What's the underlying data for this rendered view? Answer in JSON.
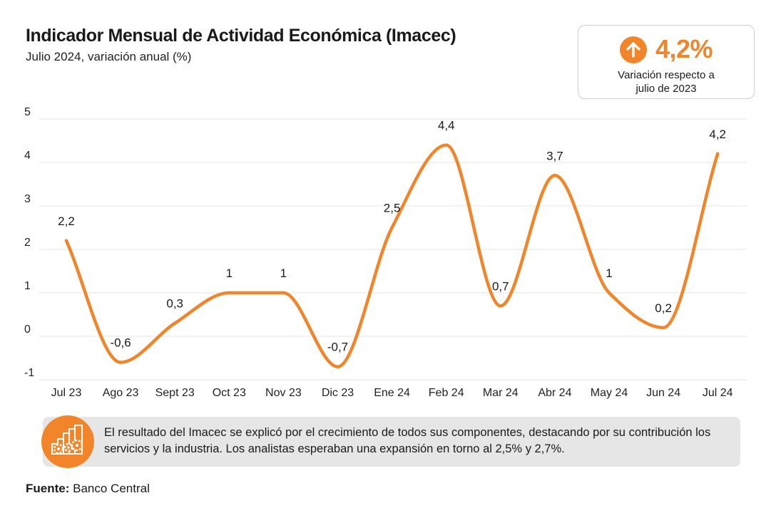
{
  "header": {
    "title": "Indicador Mensual de Actividad Económica (Imacec)",
    "subtitle": "Julio 2024, variación anual (%)"
  },
  "kpi": {
    "value": "4,2%",
    "caption_line1": "Variación respecto a",
    "caption_line2": "julio de 2023",
    "icon": "arrow-up-icon",
    "color": "#f28529"
  },
  "chart_data": {
    "type": "line",
    "categories": [
      "Jul 23",
      "Ago 23",
      "Sept 23",
      "Oct 23",
      "Nov 23",
      "Dic 23",
      "Ene 24",
      "Feb 24",
      "Mar 24",
      "Abr 24",
      "May 24",
      "Jun 24",
      "Jul 24"
    ],
    "values": [
      2.2,
      -0.6,
      0.3,
      1,
      1,
      -0.7,
      2.5,
      4.4,
      0.7,
      3.7,
      1,
      0.2,
      4.2
    ],
    "value_labels": [
      "2,2",
      "-0,6",
      "0,3",
      "1",
      "1",
      "-0,7",
      "2,5",
      "4,4",
      "0,7",
      "3,7",
      "1",
      "0,2",
      "4,2"
    ],
    "ylim": [
      -1,
      5
    ],
    "yticks": [
      -1,
      0,
      1,
      2,
      3,
      4,
      5
    ],
    "grid": true,
    "line_color": "#f28529",
    "grid_color": "#e4e4e4"
  },
  "note": {
    "text": "El resultado del Imacec se explicó por el crecimiento de todos sus componentes, destacando por su contribución los servicios y la industria. Los analistas esperaban una expansión en torno al 2,5% y 2,7%.",
    "icon": "industry-gears-icon"
  },
  "source": {
    "label": "Fuente:",
    "value": "Banco Central"
  }
}
